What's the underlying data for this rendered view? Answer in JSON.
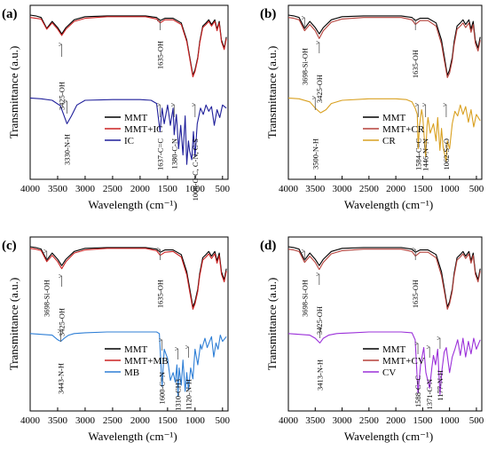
{
  "chart_data": [
    {
      "panel": "(a)",
      "type": "line",
      "ylabel": "Transmittance (a.u.)",
      "xlabel": "Wavelength (cm⁻¹)",
      "xlim": [
        4000,
        400
      ],
      "x_ticks": [
        "4000",
        "3500",
        "3000",
        "2500",
        "2000",
        "1500",
        "1000",
        "500"
      ],
      "legend": "inside-right",
      "series": [
        {
          "name": "MMT",
          "color": "#000000",
          "group": "upper",
          "x": [
            4000,
            3900,
            3800,
            3698,
            3600,
            3500,
            3425,
            3350,
            3200,
            3000,
            2600,
            2200,
            1900,
            1700,
            1635,
            1550,
            1400,
            1250,
            1150,
            1100,
            1040,
            1000,
            950,
            915,
            860,
            800,
            750,
            700,
            640,
            600,
            560,
            520,
            470,
            430
          ],
          "y": [
            92,
            91,
            89,
            75,
            84,
            76,
            68,
            76,
            86,
            90,
            91,
            91,
            91,
            89,
            85,
            88,
            88,
            82,
            60,
            40,
            15,
            22,
            38,
            58,
            78,
            82,
            86,
            80,
            86,
            74,
            84,
            60,
            50,
            64
          ]
        },
        {
          "name": "MMT+IC",
          "color": "#cc2222",
          "group": "upper",
          "x": [
            4000,
            3900,
            3800,
            3698,
            3600,
            3500,
            3425,
            3350,
            3200,
            3000,
            2600,
            2200,
            1900,
            1700,
            1635,
            1550,
            1400,
            1250,
            1150,
            1100,
            1040,
            1000,
            950,
            915,
            860,
            800,
            750,
            700,
            640,
            600,
            560,
            520,
            470,
            430
          ],
          "y": [
            89,
            88,
            87,
            74,
            82,
            74,
            66,
            74,
            84,
            88,
            90,
            90,
            90,
            87,
            82,
            86,
            86,
            80,
            58,
            38,
            13,
            20,
            36,
            56,
            76,
            80,
            84,
            78,
            84,
            72,
            82,
            58,
            48,
            62
          ]
        },
        {
          "name": "IC",
          "color": "#1f1f9a",
          "group": "lower",
          "x": [
            4000,
            3800,
            3600,
            3450,
            3330,
            3250,
            3150,
            3000,
            2500,
            2000,
            1800,
            1700,
            1637,
            1600,
            1560,
            1500,
            1450,
            1400,
            1380,
            1340,
            1300,
            1260,
            1220,
            1180,
            1150,
            1120,
            1100,
            1060,
            1030,
            1000,
            960,
            900,
            850,
            800,
            750,
            700,
            650,
            600,
            550,
            500,
            430
          ],
          "y": [
            95,
            94,
            92,
            85,
            62,
            72,
            86,
            92,
            93,
            93,
            92,
            88,
            52,
            82,
            62,
            86,
            60,
            82,
            48,
            74,
            30,
            60,
            22,
            72,
            10,
            40,
            28,
            16,
            52,
            20,
            62,
            82,
            74,
            86,
            78,
            84,
            60,
            80,
            70,
            86,
            82
          ]
        }
      ],
      "annotations": [
        "3425-OH",
        "1635-OH",
        "3330-N-H",
        "1637-C=C",
        "1380-C-N",
        "1000-C-C, C-N, C-S"
      ]
    },
    {
      "panel": "(b)",
      "type": "line",
      "ylabel": "Transmittance (a.u.)",
      "xlabel": "Wavelength (cm⁻¹)",
      "xlim": [
        4000,
        400
      ],
      "x_ticks": [
        "4000",
        "3500",
        "3000",
        "2500",
        "2000",
        "1500",
        "1000",
        "500"
      ],
      "legend": "inside-right",
      "series": [
        {
          "name": "MMT",
          "color": "#000000",
          "group": "upper",
          "x": [
            4000,
            3900,
            3800,
            3698,
            3600,
            3500,
            3425,
            3350,
            3200,
            3000,
            2600,
            2200,
            1900,
            1700,
            1635,
            1550,
            1400,
            1250,
            1150,
            1100,
            1040,
            1000,
            950,
            915,
            860,
            800,
            750,
            700,
            640,
            600,
            560,
            520,
            470,
            430
          ],
          "y": [
            92,
            91,
            89,
            75,
            84,
            76,
            68,
            76,
            86,
            90,
            91,
            91,
            91,
            89,
            85,
            88,
            88,
            82,
            60,
            40,
            15,
            22,
            38,
            58,
            78,
            82,
            86,
            80,
            86,
            74,
            84,
            60,
            50,
            64
          ]
        },
        {
          "name": "MMT+CR",
          "color": "#b5403a",
          "group": "upper",
          "x": [
            4000,
            3900,
            3800,
            3698,
            3600,
            3500,
            3425,
            3350,
            3200,
            3000,
            2600,
            2200,
            1900,
            1700,
            1635,
            1550,
            1400,
            1250,
            1150,
            1100,
            1040,
            1000,
            950,
            915,
            860,
            800,
            750,
            700,
            640,
            600,
            560,
            520,
            470,
            430
          ],
          "y": [
            89,
            88,
            86,
            72,
            80,
            72,
            62,
            72,
            83,
            87,
            89,
            89,
            89,
            86,
            80,
            85,
            85,
            78,
            55,
            35,
            12,
            18,
            34,
            54,
            74,
            78,
            82,
            76,
            82,
            70,
            80,
            56,
            46,
            60
          ]
        },
        {
          "name": "CR",
          "color": "#d9a020",
          "group": "lower",
          "x": [
            4000,
            3800,
            3600,
            3500,
            3400,
            3300,
            3200,
            3000,
            2500,
            2000,
            1800,
            1700,
            1640,
            1600,
            1584,
            1560,
            1520,
            1500,
            1446,
            1420,
            1400,
            1360,
            1300,
            1250,
            1220,
            1180,
            1150,
            1120,
            1062,
            1040,
            1000,
            950,
            900,
            850,
            800,
            750,
            700,
            650,
            600,
            550,
            500,
            430
          ],
          "y": [
            95,
            94,
            90,
            82,
            76,
            80,
            88,
            92,
            94,
            94,
            93,
            90,
            82,
            74,
            30,
            60,
            80,
            72,
            20,
            58,
            70,
            50,
            62,
            40,
            70,
            28,
            56,
            32,
            14,
            40,
            30,
            62,
            78,
            72,
            86,
            74,
            84,
            64,
            80,
            58,
            74,
            66
          ]
        }
      ],
      "annotations": [
        "3698-Si-OH",
        "3425-OH",
        "1635-OH",
        "3500-N-H",
        "1584-C=C",
        "1446-N=N",
        "1062-S=O"
      ]
    },
    {
      "panel": "(c)",
      "type": "line",
      "ylabel": "Transmittance (a.u.)",
      "xlabel": "Wavelength (cm⁻¹)",
      "xlim": [
        4000,
        400
      ],
      "x_ticks": [
        "4000",
        "3500",
        "3000",
        "2500",
        "2000",
        "1500",
        "1000",
        "500"
      ],
      "legend": "inside-right",
      "series": [
        {
          "name": "MMT",
          "color": "#000000",
          "group": "upper",
          "x": [
            4000,
            3900,
            3800,
            3698,
            3600,
            3500,
            3425,
            3350,
            3200,
            3000,
            2600,
            2200,
            1900,
            1700,
            1635,
            1550,
            1400,
            1250,
            1150,
            1100,
            1040,
            1000,
            950,
            915,
            860,
            800,
            750,
            700,
            640,
            600,
            560,
            520,
            470,
            430
          ],
          "y": [
            92,
            91,
            89,
            75,
            84,
            76,
            68,
            76,
            86,
            90,
            91,
            91,
            91,
            89,
            85,
            88,
            88,
            82,
            60,
            40,
            15,
            22,
            38,
            58,
            78,
            82,
            86,
            80,
            86,
            74,
            84,
            60,
            50,
            64
          ]
        },
        {
          "name": "MMT+MB",
          "color": "#cc2222",
          "group": "upper",
          "x": [
            4000,
            3900,
            3800,
            3698,
            3600,
            3500,
            3425,
            3350,
            3200,
            3000,
            2600,
            2200,
            1900,
            1700,
            1635,
            1550,
            1400,
            1250,
            1150,
            1100,
            1040,
            1000,
            950,
            915,
            860,
            800,
            750,
            700,
            640,
            600,
            560,
            520,
            470,
            430
          ],
          "y": [
            90,
            89,
            87,
            73,
            81,
            73,
            64,
            73,
            84,
            88,
            90,
            90,
            90,
            87,
            81,
            85,
            86,
            79,
            56,
            36,
            12,
            19,
            35,
            55,
            75,
            79,
            83,
            77,
            83,
            71,
            81,
            57,
            47,
            61
          ]
        },
        {
          "name": "MB",
          "color": "#2f7fd6",
          "group": "lower",
          "x": [
            4000,
            3800,
            3600,
            3500,
            3443,
            3380,
            3300,
            3200,
            3000,
            2600,
            2200,
            1900,
            1700,
            1650,
            1600,
            1560,
            1500,
            1450,
            1400,
            1360,
            1330,
            1310,
            1290,
            1250,
            1220,
            1180,
            1150,
            1120,
            1080,
            1040,
            1000,
            950,
            900,
            880,
            820,
            780,
            700,
            660,
            620,
            580,
            540,
            500,
            430
          ],
          "y": [
            90,
            89,
            88,
            82,
            80,
            84,
            88,
            90,
            91,
            92,
            92,
            92,
            92,
            90,
            22,
            70,
            58,
            30,
            40,
            28,
            50,
            10,
            46,
            24,
            56,
            16,
            40,
            18,
            46,
            32,
            70,
            50,
            76,
            70,
            84,
            72,
            86,
            60,
            78,
            70,
            88,
            80,
            86
          ]
        }
      ],
      "annotations": [
        "3698-Si-OH",
        "3425-OH",
        "1635-OH",
        "3443-N-H",
        "1600-C=N",
        "1310-CH3",
        "1120-N-H"
      ]
    },
    {
      "panel": "(d)",
      "type": "line",
      "ylabel": "Transmittance (a.u.)",
      "xlabel": "Wavelength (cm⁻¹)",
      "xlim": [
        4000,
        400
      ],
      "x_ticks": [
        "4000",
        "3500",
        "3000",
        "2500",
        "2000",
        "1500",
        "1000",
        "500"
      ],
      "legend": "inside-right",
      "series": [
        {
          "name": "MMT",
          "color": "#000000",
          "group": "upper",
          "x": [
            4000,
            3900,
            3800,
            3698,
            3600,
            3500,
            3425,
            3350,
            3200,
            3000,
            2600,
            2200,
            1900,
            1700,
            1635,
            1550,
            1400,
            1250,
            1150,
            1100,
            1040,
            1000,
            950,
            915,
            860,
            800,
            750,
            700,
            640,
            600,
            560,
            520,
            470,
            430
          ],
          "y": [
            92,
            91,
            89,
            75,
            84,
            76,
            68,
            76,
            86,
            90,
            91,
            91,
            91,
            89,
            85,
            88,
            88,
            82,
            60,
            40,
            15,
            22,
            38,
            58,
            78,
            82,
            86,
            80,
            86,
            74,
            84,
            60,
            50,
            64
          ]
        },
        {
          "name": "MMT+CV",
          "color": "#b5403a",
          "group": "upper",
          "x": [
            4000,
            3900,
            3800,
            3698,
            3600,
            3500,
            3425,
            3350,
            3200,
            3000,
            2600,
            2200,
            1900,
            1700,
            1635,
            1550,
            1400,
            1250,
            1150,
            1100,
            1040,
            1000,
            950,
            915,
            860,
            800,
            750,
            700,
            640,
            600,
            560,
            520,
            470,
            430
          ],
          "y": [
            89,
            88,
            86,
            72,
            80,
            72,
            63,
            72,
            83,
            87,
            89,
            89,
            89,
            86,
            80,
            85,
            85,
            78,
            55,
            36,
            12,
            19,
            35,
            55,
            75,
            79,
            83,
            77,
            83,
            71,
            81,
            57,
            47,
            61
          ]
        },
        {
          "name": "CV",
          "color": "#9b30d9",
          "group": "lower",
          "x": [
            4000,
            3800,
            3600,
            3500,
            3413,
            3350,
            3250,
            3100,
            2800,
            2500,
            2200,
            1900,
            1700,
            1640,
            1588,
            1540,
            1480,
            1440,
            1371,
            1330,
            1300,
            1260,
            1220,
            1177,
            1140,
            1100,
            1060,
            1000,
            950,
            900,
            850,
            800,
            750,
            700,
            650,
            600,
            550,
            500,
            430
          ],
          "y": [
            90,
            89,
            88,
            84,
            78,
            84,
            88,
            90,
            91,
            92,
            92,
            92,
            91,
            82,
            14,
            50,
            72,
            40,
            20,
            46,
            62,
            50,
            70,
            12,
            44,
            66,
            72,
            40,
            60,
            70,
            82,
            62,
            84,
            60,
            80,
            64,
            84,
            70,
            82
          ]
        }
      ],
      "annotations": [
        "3698-Si-OH",
        "3425-OH",
        "1635-OH",
        "3413-N-H",
        "1588-C=C",
        "1371-C-N",
        "1177-N-H"
      ]
    }
  ]
}
